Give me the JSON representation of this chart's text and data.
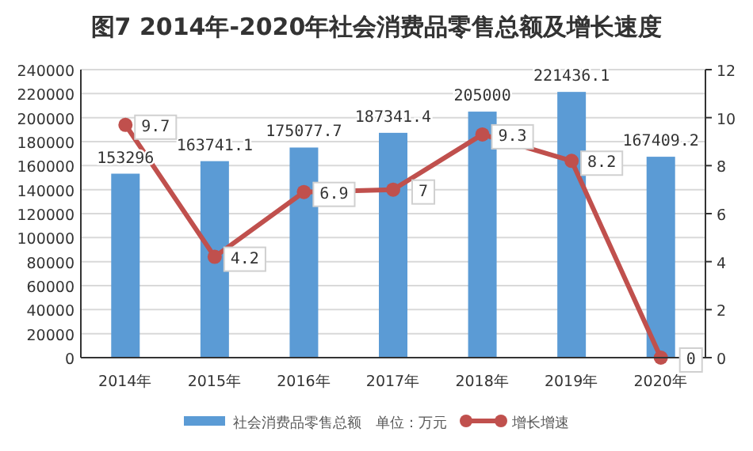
{
  "chart_data": {
    "type": "bar",
    "title": "图7  2014年-2020年社会消费品零售总额及增长速度",
    "categories": [
      "2014年",
      "2015年",
      "2016年",
      "2017年",
      "2018年",
      "2019年",
      "2020年"
    ],
    "series": [
      {
        "name": "社会消费品零售总额　单位：万元",
        "color": "#5b9bd5",
        "values": [
          153296,
          163741.1,
          175077.7,
          187341.4,
          205000,
          221436.1,
          167409.2
        ]
      },
      {
        "name": "增长增速",
        "type": "line",
        "axis": "y2",
        "color": "#c0504d",
        "values": [
          9.7,
          4.2,
          6.9,
          7,
          9.3,
          8.2,
          0
        ]
      }
    ],
    "ylim": [
      0,
      240000
    ],
    "yticks": [
      0,
      20000,
      40000,
      60000,
      80000,
      100000,
      120000,
      140000,
      160000,
      180000,
      200000,
      220000,
      240000
    ],
    "y2lim": [
      0,
      12
    ],
    "y2ticks": [
      0,
      2,
      4,
      6,
      8,
      10,
      12
    ],
    "grid": "y",
    "legend": "bottom",
    "data_labels": true,
    "marker": "circle"
  }
}
